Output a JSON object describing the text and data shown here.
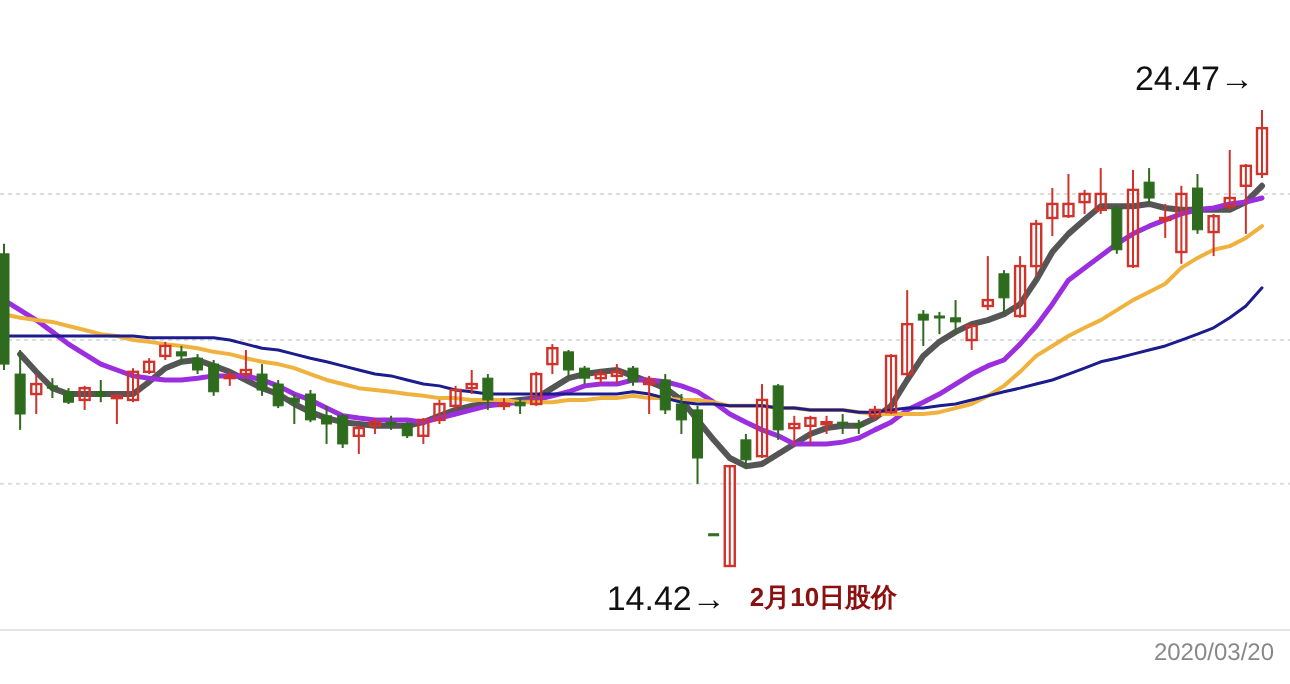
{
  "chart_data": {
    "type": "candlestick",
    "categories": [
      null,
      null,
      null,
      null,
      null,
      null,
      null,
      null,
      null,
      null,
      null,
      null,
      null,
      null,
      null,
      null,
      null,
      null,
      null,
      null,
      null,
      null,
      null,
      null,
      null,
      null,
      null,
      null,
      null,
      null,
      null,
      null,
      null,
      null,
      null,
      null,
      null,
      null,
      null,
      null,
      null,
      null,
      null,
      null,
      null,
      null,
      null,
      null,
      null,
      null,
      null,
      null,
      null,
      null,
      null,
      null,
      null,
      null,
      null,
      null,
      null,
      null,
      null,
      null,
      null,
      null,
      null,
      null,
      null,
      null,
      null,
      null,
      null,
      null,
      null,
      null,
      null,
      null,
      null
    ],
    "ohlc": [
      [
        21.3,
        21.52,
        18.74,
        18.87
      ],
      [
        18.65,
        19.18,
        17.42,
        17.77
      ],
      [
        18.21,
        18.65,
        17.77,
        18.43
      ],
      [
        18.39,
        18.56,
        18.12,
        18.34
      ],
      [
        18.26,
        18.34,
        17.99,
        18.03
      ],
      [
        18.08,
        18.39,
        17.86,
        18.34
      ],
      [
        18.26,
        18.52,
        18.03,
        18.17
      ],
      [
        18.12,
        18.21,
        17.55,
        18.17
      ],
      [
        18.08,
        18.78,
        18.03,
        18.7
      ],
      [
        18.7,
        19.0,
        18.65,
        18.92
      ],
      [
        19.05,
        19.36,
        18.96,
        19.27
      ],
      [
        19.14,
        19.27,
        18.87,
        19.05
      ],
      [
        19.0,
        19.09,
        18.65,
        18.74
      ],
      [
        18.87,
        18.96,
        18.17,
        18.26
      ],
      [
        18.56,
        18.7,
        18.39,
        18.61
      ],
      [
        18.65,
        19.18,
        18.56,
        18.74
      ],
      [
        18.65,
        18.87,
        18.17,
        18.3
      ],
      [
        18.43,
        18.52,
        17.9,
        17.95
      ],
      [
        18.12,
        18.21,
        17.55,
        18.03
      ],
      [
        18.21,
        18.3,
        17.59,
        17.64
      ],
      [
        17.73,
        17.95,
        17.11,
        17.55
      ],
      [
        17.73,
        17.77,
        17.02,
        17.11
      ],
      [
        17.29,
        17.51,
        16.89,
        17.46
      ],
      [
        17.51,
        17.68,
        17.33,
        17.59
      ],
      [
        17.59,
        17.73,
        17.42,
        17.55
      ],
      [
        17.55,
        17.59,
        17.24,
        17.29
      ],
      [
        17.29,
        17.68,
        17.11,
        17.64
      ],
      [
        17.64,
        18.08,
        17.55,
        17.99
      ],
      [
        17.95,
        18.39,
        17.86,
        18.3
      ],
      [
        18.34,
        18.74,
        18.21,
        18.43
      ],
      [
        18.56,
        18.65,
        17.86,
        18.08
      ],
      [
        17.95,
        18.12,
        17.86,
        17.99
      ],
      [
        18.03,
        18.12,
        17.77,
        17.95
      ],
      [
        17.99,
        18.7,
        17.95,
        18.65
      ],
      [
        18.87,
        19.31,
        18.65,
        19.22
      ],
      [
        19.14,
        19.18,
        18.56,
        18.74
      ],
      [
        18.78,
        18.83,
        18.43,
        18.56
      ],
      [
        18.56,
        18.74,
        18.43,
        18.65
      ],
      [
        18.61,
        18.87,
        18.43,
        18.7
      ],
      [
        18.78,
        18.83,
        18.39,
        18.48
      ],
      [
        18.43,
        18.61,
        17.77,
        18.52
      ],
      [
        18.52,
        18.65,
        17.77,
        17.86
      ],
      [
        17.99,
        18.21,
        17.33,
        17.64
      ],
      [
        17.86,
        17.95,
        16.23,
        16.8
      ],
      [
        15.13,
        15.13,
        15.13,
        15.13
      ],
      [
        14.42,
        16.62,
        14.42,
        16.62
      ],
      [
        17.2,
        17.33,
        16.58,
        16.76
      ],
      [
        16.84,
        18.43,
        16.8,
        18.08
      ],
      [
        18.39,
        18.43,
        17.2,
        17.42
      ],
      [
        17.46,
        17.73,
        17.07,
        17.55
      ],
      [
        17.51,
        17.73,
        17.11,
        17.68
      ],
      [
        17.55,
        17.73,
        17.33,
        17.59
      ],
      [
        17.59,
        17.77,
        17.33,
        17.55
      ],
      [
        17.55,
        17.64,
        17.33,
        17.51
      ],
      [
        17.73,
        17.95,
        17.64,
        17.86
      ],
      [
        17.81,
        19.09,
        17.77,
        19.05
      ],
      [
        18.65,
        20.5,
        18.61,
        19.75
      ],
      [
        19.97,
        20.06,
        19.27,
        19.84
      ],
      [
        19.93,
        20.02,
        19.53,
        19.89
      ],
      [
        19.89,
        20.28,
        19.53,
        19.8
      ],
      [
        19.4,
        19.75,
        19.18,
        19.71
      ],
      [
        20.15,
        21.25,
        20.06,
        20.28
      ],
      [
        20.86,
        20.94,
        19.97,
        20.33
      ],
      [
        19.93,
        21.25,
        19.89,
        21.03
      ],
      [
        21.03,
        22.05,
        20.81,
        21.96
      ],
      [
        22.09,
        22.75,
        21.69,
        22.4
      ],
      [
        22.13,
        23.06,
        22.09,
        22.4
      ],
      [
        22.44,
        22.71,
        22.18,
        22.62
      ],
      [
        22.27,
        23.19,
        22.18,
        22.62
      ],
      [
        22.31,
        22.35,
        21.3,
        21.39
      ],
      [
        21.03,
        23.15,
        20.99,
        22.71
      ],
      [
        22.88,
        23.19,
        22.4,
        22.53
      ],
      [
        22.05,
        22.4,
        21.65,
        22.09
      ],
      [
        21.34,
        22.8,
        21.08,
        22.62
      ],
      [
        22.75,
        23.06,
        21.74,
        21.83
      ],
      [
        21.78,
        22.18,
        21.25,
        22.13
      ],
      [
        22.35,
        23.59,
        22.27,
        22.53
      ],
      [
        22.8,
        23.28,
        21.74,
        23.24
      ],
      [
        23.06,
        24.47,
        22.97,
        24.07
      ]
    ],
    "colors": [
      "#2e6b1e",
      "#2e6b1e",
      "#d0332b",
      "#2e6b1e",
      "#2e6b1e",
      "#d0332b",
      "#2e6b1e",
      "#d0332b",
      "#d0332b",
      "#d0332b",
      "#d0332b",
      "#2e6b1e",
      "#2e6b1e",
      "#2e6b1e",
      "#d0332b",
      "#d0332b",
      "#2e6b1e",
      "#2e6b1e",
      "#2e6b1e",
      "#2e6b1e",
      "#2e6b1e",
      "#2e6b1e",
      "#d0332b",
      "#d0332b",
      "#2e6b1e",
      "#2e6b1e",
      "#d0332b",
      "#d0332b",
      "#d0332b",
      "#d0332b",
      "#2e6b1e",
      "#d0332b",
      "#2e6b1e",
      "#d0332b",
      "#d0332b",
      "#2e6b1e",
      "#2e6b1e",
      "#d0332b",
      "#d0332b",
      "#2e6b1e",
      "#d0332b",
      "#2e6b1e",
      "#2e6b1e",
      "#2e6b1e",
      "#2e6b1e",
      "#d0332b",
      "#2e6b1e",
      "#d0332b",
      "#2e6b1e",
      "#d0332b",
      "#d0332b",
      "#d0332b",
      "#2e6b1e",
      "#2e6b1e",
      "#d0332b",
      "#d0332b",
      "#d0332b",
      "#2e6b1e",
      "#2e6b1e",
      "#2e6b1e",
      "#d0332b",
      "#d0332b",
      "#2e6b1e",
      "#d0332b",
      "#d0332b",
      "#d0332b",
      "#d0332b",
      "#d0332b",
      "#d0332b",
      "#2e6b1e",
      "#d0332b",
      "#2e6b1e",
      "#d0332b",
      "#d0332b",
      "#2e6b1e",
      "#d0332b",
      "#d0332b",
      "#d0332b",
      "#d0332b"
    ],
    "series": [
      {
        "type": "line",
        "color": "#555555",
        "values": [
          null,
          19.09,
          18.7,
          18.34,
          18.21,
          18.21,
          18.21,
          18.21,
          18.21,
          18.48,
          18.78,
          18.92,
          18.96,
          18.83,
          18.7,
          18.52,
          18.34,
          18.21,
          17.99,
          17.81,
          17.68,
          17.59,
          17.55,
          17.51,
          17.51,
          17.51,
          17.59,
          17.73,
          17.86,
          17.95,
          17.99,
          18.03,
          18.08,
          18.12,
          18.34,
          18.56,
          18.65,
          18.7,
          18.74,
          18.61,
          18.48,
          18.34,
          18.08,
          17.64,
          17.2,
          16.8,
          16.62,
          16.67,
          16.89,
          17.11,
          17.33,
          17.46,
          17.51,
          17.51,
          17.68,
          17.95,
          18.52,
          19.05,
          19.36,
          19.58,
          19.75,
          19.84,
          19.97,
          20.19,
          20.72,
          21.34,
          21.74,
          22.05,
          22.35,
          22.35,
          22.35,
          22.4,
          22.31,
          22.27,
          22.27,
          22.27,
          22.27,
          22.44,
          22.8
        ]
      },
      {
        "type": "line",
        "color": "#9b2fe0",
        "values": [
          20.28,
          20.06,
          19.84,
          19.58,
          19.31,
          19.09,
          18.87,
          18.74,
          18.61,
          18.56,
          18.52,
          18.52,
          18.56,
          18.61,
          18.61,
          18.61,
          18.52,
          18.39,
          18.21,
          18.08,
          17.9,
          17.73,
          17.68,
          17.64,
          17.64,
          17.64,
          17.59,
          17.68,
          17.77,
          17.86,
          17.95,
          17.99,
          18.03,
          18.08,
          18.17,
          18.26,
          18.39,
          18.43,
          18.43,
          18.52,
          18.52,
          18.48,
          18.39,
          18.26,
          18.03,
          17.77,
          17.59,
          17.42,
          17.29,
          17.11,
          17.11,
          17.11,
          17.15,
          17.24,
          17.42,
          17.59,
          17.86,
          18.03,
          18.21,
          18.43,
          18.65,
          18.83,
          18.96,
          19.31,
          19.71,
          20.19,
          20.72,
          20.99,
          21.25,
          21.52,
          21.74,
          21.91,
          22.05,
          22.18,
          22.27,
          22.31,
          22.4,
          22.44,
          22.53
        ]
      },
      {
        "type": "line",
        "color": "#f0b23e",
        "values": [
          19.97,
          19.89,
          19.84,
          19.8,
          19.71,
          19.62,
          19.53,
          19.49,
          19.4,
          19.36,
          19.31,
          19.27,
          19.22,
          19.14,
          19.09,
          19.0,
          18.92,
          18.87,
          18.78,
          18.65,
          18.52,
          18.43,
          18.34,
          18.3,
          18.26,
          18.21,
          18.17,
          18.12,
          18.12,
          18.08,
          18.08,
          18.08,
          18.03,
          18.03,
          18.03,
          18.08,
          18.08,
          18.12,
          18.12,
          18.17,
          18.12,
          18.12,
          18.08,
          18.08,
          18.03,
          17.95,
          17.95,
          17.95,
          17.9,
          17.9,
          17.86,
          17.86,
          17.86,
          17.81,
          17.77,
          17.77,
          17.77,
          17.77,
          17.81,
          17.9,
          17.99,
          18.17,
          18.39,
          18.7,
          19.05,
          19.27,
          19.49,
          19.67,
          19.84,
          20.06,
          20.28,
          20.46,
          20.64,
          20.99,
          21.21,
          21.39,
          21.47,
          21.65,
          21.91
        ]
      },
      {
        "type": "line",
        "color": "#1c1c8e",
        "values": [
          19.49,
          19.49,
          19.49,
          19.49,
          19.49,
          19.49,
          19.49,
          19.49,
          19.49,
          19.45,
          19.45,
          19.45,
          19.45,
          19.45,
          19.4,
          19.31,
          19.22,
          19.18,
          19.09,
          19.0,
          18.92,
          18.83,
          18.74,
          18.65,
          18.61,
          18.52,
          18.43,
          18.39,
          18.3,
          18.26,
          18.21,
          18.21,
          18.21,
          18.21,
          18.21,
          18.21,
          18.21,
          18.21,
          18.21,
          18.26,
          18.21,
          18.12,
          18.03,
          17.99,
          17.99,
          17.95,
          17.95,
          17.95,
          17.9,
          17.9,
          17.86,
          17.86,
          17.86,
          17.81,
          17.81,
          17.86,
          17.9,
          17.9,
          17.95,
          17.99,
          18.08,
          18.17,
          18.26,
          18.34,
          18.43,
          18.52,
          18.65,
          18.78,
          18.92,
          19.0,
          19.09,
          19.18,
          19.27,
          19.4,
          19.53,
          19.67,
          19.89,
          20.15,
          20.55
        ]
      }
    ],
    "yticks": [
      {
        "value": 22.62,
        "label": null
      },
      {
        "value": 19.4,
        "label": null
      },
      {
        "value": 16.23,
        "label": null
      },
      {
        "value": 13.01,
        "label": null
      }
    ],
    "grid": "y",
    "annotations": [
      "24.47→",
      "14.42→",
      "2月10日股价",
      "2020/03/20"
    ]
  }
}
